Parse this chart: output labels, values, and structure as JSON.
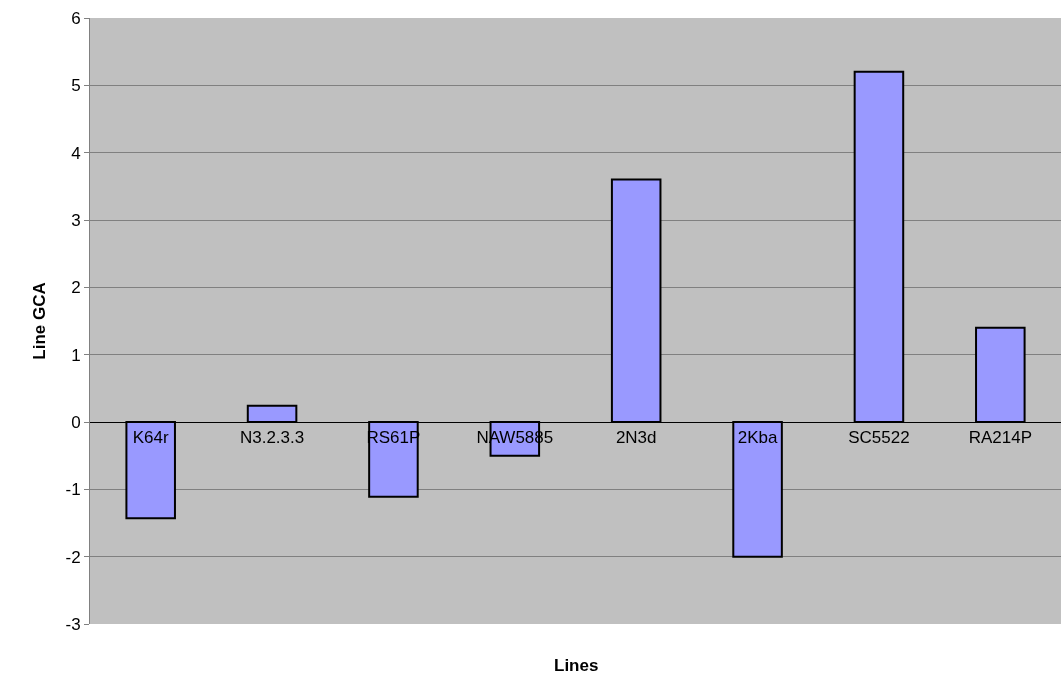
{
  "chart_data": {
    "type": "bar",
    "xlabel": "Lines",
    "ylabel": "Line GCA",
    "categories": [
      "K64r",
      "N3.2.3.3",
      "RS61P",
      "NAW5885",
      "2N3d",
      "2Kba",
      "SC5522",
      "RA214P"
    ],
    "values": [
      -1.43,
      0.24,
      -1.11,
      -0.5,
      3.6,
      -2.0,
      5.2,
      1.4
    ],
    "color": "#9999ff",
    "ylim": [
      -3,
      6
    ],
    "yticks": [
      -3,
      -2,
      -1,
      0,
      1,
      2,
      3,
      4,
      5,
      6
    ],
    "grid": "y"
  }
}
